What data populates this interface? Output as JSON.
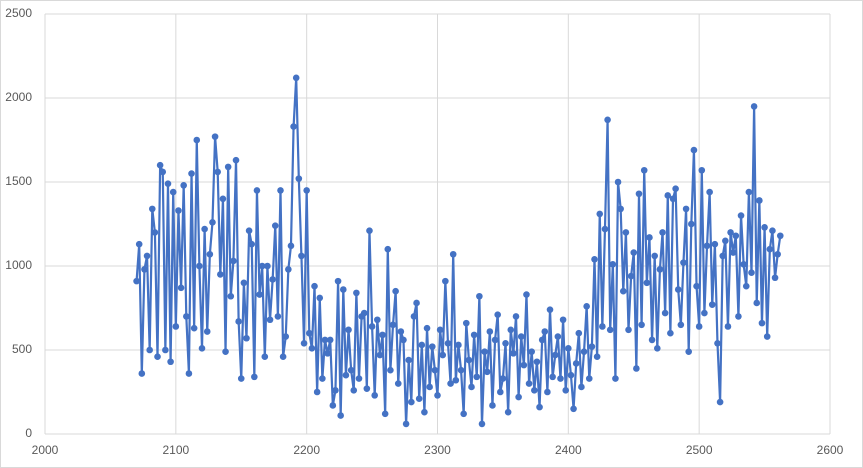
{
  "chart_data": {
    "type": "line",
    "color": "#4472c4",
    "grid": true,
    "xlim": [
      2000,
      2600
    ],
    "xticks": [
      2000,
      2100,
      2200,
      2300,
      2400,
      2500,
      2600
    ],
    "ylim": [
      0,
      2500
    ],
    "yticks": [
      0,
      500,
      1000,
      1500,
      2000,
      2500
    ],
    "x": [
      2070,
      2072,
      2074,
      2076,
      2078,
      2080,
      2082,
      2084,
      2086,
      2088,
      2090,
      2092,
      2094,
      2096,
      2098,
      2100,
      2102,
      2104,
      2106,
      2108,
      2110,
      2112,
      2114,
      2116,
      2118,
      2120,
      2122,
      2124,
      2126,
      2128,
      2130,
      2132,
      2134,
      2136,
      2138,
      2140,
      2142,
      2144,
      2146,
      2148,
      2150,
      2152,
      2154,
      2156,
      2158,
      2160,
      2162,
      2164,
      2166,
      2168,
      2170,
      2172,
      2174,
      2176,
      2178,
      2180,
      2182,
      2184,
      2186,
      2188,
      2190,
      2192,
      2194,
      2196,
      2198,
      2200,
      2202,
      2204,
      2206,
      2208,
      2210,
      2212,
      2214,
      2216,
      2218,
      2220,
      2222,
      2224,
      2226,
      2228,
      2230,
      2232,
      2234,
      2236,
      2238,
      2240,
      2242,
      2244,
      2246,
      2248,
      2250,
      2252,
      2254,
      2256,
      2258,
      2260,
      2262,
      2264,
      2266,
      2268,
      2270,
      2272,
      2274,
      2276,
      2278,
      2280,
      2282,
      2284,
      2286,
      2288,
      2290,
      2292,
      2294,
      2296,
      2298,
      2300,
      2302,
      2304,
      2306,
      2308,
      2310,
      2312,
      2314,
      2316,
      2318,
      2320,
      2322,
      2324,
      2326,
      2328,
      2330,
      2332,
      2334,
      2336,
      2338,
      2340,
      2342,
      2344,
      2346,
      2348,
      2350,
      2352,
      2354,
      2356,
      2358,
      2360,
      2362,
      2364,
      2366,
      2368,
      2370,
      2372,
      2374,
      2376,
      2378,
      2380,
      2382,
      2384,
      2386,
      2388,
      2390,
      2392,
      2394,
      2396,
      2398,
      2400,
      2402,
      2404,
      2406,
      2408,
      2410,
      2412,
      2414,
      2416,
      2418,
      2420,
      2422,
      2424,
      2426,
      2428,
      2430,
      2432,
      2434,
      2436,
      2438,
      2440,
      2442,
      2444,
      2446,
      2448,
      2450,
      2452,
      2454,
      2456,
      2458,
      2460,
      2462,
      2464,
      2466,
      2468,
      2470,
      2472,
      2474,
      2476,
      2478,
      2480,
      2482,
      2484,
      2486,
      2488,
      2490,
      2492,
      2494,
      2496,
      2498,
      2500,
      2502,
      2504,
      2506,
      2508,
      2510,
      2512,
      2514,
      2516,
      2518,
      2520,
      2522,
      2524,
      2526,
      2528,
      2530,
      2532,
      2534,
      2536,
      2538,
      2540,
      2542,
      2544,
      2546,
      2548,
      2550,
      2552,
      2554,
      2556,
      2558,
      2560,
      2562
    ],
    "values": [
      910,
      1130,
      360,
      980,
      1060,
      500,
      1340,
      1200,
      460,
      1600,
      1560,
      500,
      1490,
      430,
      1440,
      640,
      1330,
      870,
      1480,
      700,
      360,
      1550,
      630,
      1750,
      1000,
      510,
      1220,
      610,
      1070,
      1260,
      1770,
      1560,
      950,
      1400,
      490,
      1590,
      820,
      1030,
      1630,
      670,
      330,
      900,
      570,
      1210,
      1130,
      340,
      1450,
      830,
      1000,
      460,
      1000,
      680,
      920,
      1240,
      700,
      1450,
      460,
      580,
      980,
      1120,
      1830,
      2120,
      1520,
      1060,
      540,
      1450,
      600,
      510,
      880,
      250,
      810,
      330,
      560,
      480,
      560,
      170,
      260,
      910,
      110,
      860,
      350,
      620,
      380,
      260,
      840,
      330,
      700,
      720,
      270,
      1210,
      640,
      230,
      680,
      470,
      590,
      120,
      1100,
      380,
      650,
      850,
      300,
      610,
      560,
      60,
      440,
      190,
      700,
      780,
      210,
      530,
      130,
      630,
      280,
      520,
      380,
      230,
      620,
      470,
      910,
      540,
      300,
      1070,
      320,
      530,
      380,
      120,
      660,
      440,
      280,
      590,
      340,
      820,
      60,
      490,
      370,
      610,
      170,
      560,
      710,
      250,
      330,
      540,
      130,
      620,
      480,
      700,
      220,
      580,
      410,
      830,
      300,
      490,
      260,
      430,
      160,
      560,
      610,
      250,
      740,
      340,
      470,
      580,
      330,
      680,
      260,
      510,
      350,
      150,
      420,
      600,
      280,
      490,
      760,
      330,
      520,
      1040,
      460,
      1310,
      640,
      1220,
      1870,
      620,
      1010,
      330,
      1500,
      1340,
      850,
      1200,
      620,
      940,
      1080,
      390,
      1430,
      650,
      1570,
      900,
      1170,
      560,
      1060,
      510,
      980,
      1200,
      720,
      1420,
      600,
      1400,
      1460,
      860,
      650,
      1020,
      1340,
      490,
      1250,
      1690,
      880,
      640,
      1570,
      720,
      1120,
      1440,
      770,
      1130,
      540,
      190,
      1060,
      1150,
      640,
      1200,
      1080,
      1180,
      700,
      1300,
      1010,
      880,
      1440,
      960,
      1950,
      780,
      1390,
      660,
      1230,
      580,
      1100,
      1210,
      930,
      1070,
      1180
    ]
  }
}
